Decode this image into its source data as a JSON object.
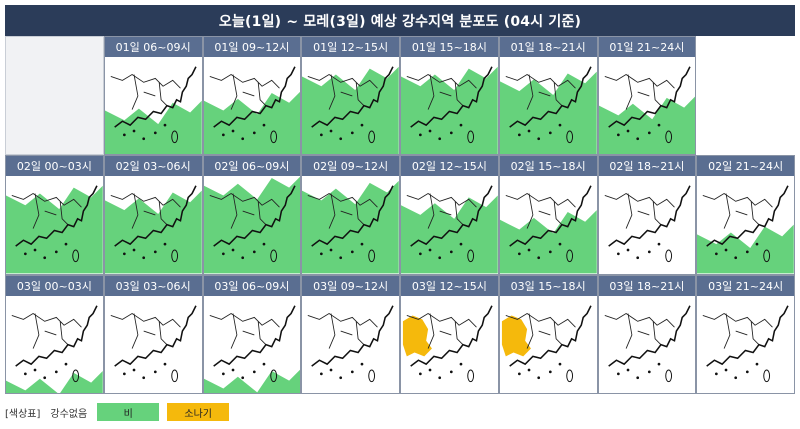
{
  "title": "오늘(1일) ~ 모레(3일) 예상 강수지역 분포도 (04시 기준)",
  "colors": {
    "rain": "#66d27c",
    "shower": "#f5b90c",
    "none": "#ffffff"
  },
  "rows": [
    [
      {
        "label": "",
        "empty": true
      },
      {
        "label": "01일 06~09시",
        "coverage": 0.35,
        "type": "rain"
      },
      {
        "label": "01일 09~12시",
        "coverage": 0.45,
        "type": "rain"
      },
      {
        "label": "01일 12~15시",
        "coverage": 0.7,
        "type": "rain"
      },
      {
        "label": "01일 15~18시",
        "coverage": 0.7,
        "type": "rain"
      },
      {
        "label": "01일 18~21시",
        "coverage": 0.65,
        "type": "rain"
      },
      {
        "label": "01일 21~24시",
        "coverage": 0.4,
        "type": "rain"
      },
      {
        "label": "",
        "empty": true,
        "hidden": true
      }
    ],
    [
      {
        "label": "02일 00~03시",
        "coverage": 0.7,
        "type": "rain"
      },
      {
        "label": "02일 03~06시",
        "coverage": 0.65,
        "type": "rain"
      },
      {
        "label": "02일 06~09시",
        "coverage": 0.8,
        "type": "rain"
      },
      {
        "label": "02일 09~12시",
        "coverage": 0.75,
        "type": "rain"
      },
      {
        "label": "02일 12~15시",
        "coverage": 0.6,
        "type": "rain"
      },
      {
        "label": "02일 15~18시",
        "coverage": 0.45,
        "type": "rain"
      },
      {
        "label": "02일 18~21시",
        "coverage": 0.0,
        "type": "none"
      },
      {
        "label": "02일 21~24시",
        "coverage": 0.3,
        "type": "rain"
      }
    ],
    [
      {
        "label": "03일 00~03시",
        "coverage": 0.03,
        "type": "rain"
      },
      {
        "label": "03일 03~06시",
        "coverage": 0.0,
        "type": "none"
      },
      {
        "label": "03일 06~09시",
        "coverage": 0.05,
        "type": "rain"
      },
      {
        "label": "03일 09~12시",
        "coverage": 0.0,
        "type": "none"
      },
      {
        "label": "03일 12~15시",
        "coverage": 0.3,
        "type": "shower"
      },
      {
        "label": "03일 15~18시",
        "coverage": 0.3,
        "type": "shower"
      },
      {
        "label": "03일 18~21시",
        "coverage": 0.0,
        "type": "none"
      },
      {
        "label": "03일 21~24시",
        "coverage": 0.0,
        "type": "none"
      }
    ]
  ],
  "legend": {
    "title": "[색상표]",
    "none_label": "강수없음",
    "rain_label": "비",
    "shower_label": "소나기"
  }
}
